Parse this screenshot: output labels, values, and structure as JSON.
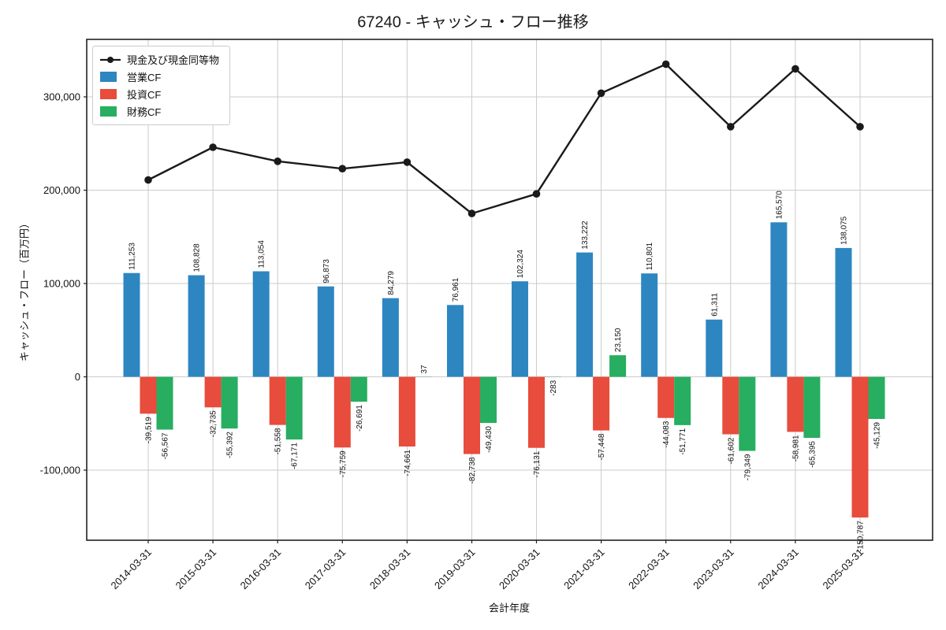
{
  "chart_data": {
    "type": "bar",
    "title": "67240 - キャッシュ・フロー推移",
    "xlabel": "会計年度",
    "ylabel": "キャッシュ・フロー（百万円）",
    "categories": [
      "2014-03-31",
      "2015-03-31",
      "2016-03-31",
      "2017-03-31",
      "2018-03-31",
      "2019-03-31",
      "2020-03-31",
      "2021-03-31",
      "2022-03-31",
      "2023-03-31",
      "2024-03-31",
      "2025-03-31"
    ],
    "series": [
      {
        "name": "現金及び現金同等物",
        "type": "line",
        "color": "#1a1a1a",
        "estimated": true,
        "values": [
          211000,
          246000,
          231000,
          223000,
          230000,
          175000,
          196000,
          304000,
          335000,
          268000,
          330000,
          268000
        ]
      },
      {
        "name": "営業CF",
        "type": "bar",
        "color": "#2E86C1",
        "values": [
          111253,
          108828,
          113054,
          96873,
          84279,
          76961,
          102324,
          133222,
          110801,
          61311,
          165570,
          138075
        ]
      },
      {
        "name": "投資CF",
        "type": "bar",
        "color": "#E74C3C",
        "values": [
          -39519,
          -32735,
          -51558,
          -75759,
          -74661,
          -82738,
          -76131,
          -57448,
          -44083,
          -61602,
          -58981,
          -150787
        ]
      },
      {
        "name": "財務CF",
        "type": "bar",
        "color": "#27AE60",
        "values": [
          -56567,
          -55392,
          -67171,
          -26691,
          37,
          -49430,
          -283,
          23150,
          -51771,
          -79349,
          -65395,
          -45129
        ]
      }
    ],
    "y_ticks": [
      300000,
      200000,
      100000,
      0,
      -100000
    ],
    "ylim": [
      -175000,
      361500
    ],
    "grid": true,
    "legend_position": "upper left",
    "bar_value_label_rotation": 90,
    "x_tick_label_rotation": 45
  }
}
